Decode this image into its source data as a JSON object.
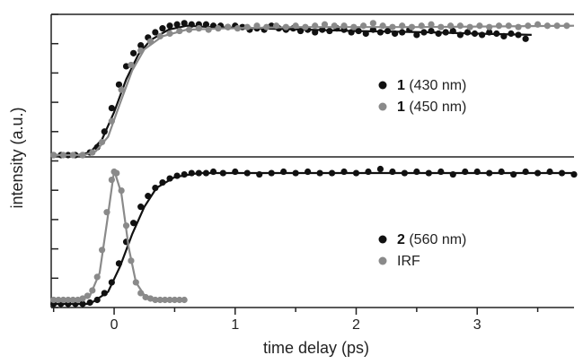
{
  "chart_data": {
    "type": "scatter",
    "xlabel": "time delay (ps)",
    "ylabel": "intensity (a.u.)",
    "xlim": [
      -0.52,
      3.8
    ],
    "x_ticks": [
      0,
      1,
      2,
      3
    ],
    "grid": false,
    "colors": {
      "black": "#111111",
      "gray": "#8a8a8a"
    },
    "panels": [
      {
        "id": "top",
        "ylim": [
          0,
          1.05
        ],
        "legend_position": "center-right",
        "series": [
          {
            "name_bold": "1",
            "name": "(430 nm)",
            "color": "#111111",
            "x": [
              -0.5,
              -0.44,
              -0.38,
              -0.32,
              -0.26,
              -0.2,
              -0.14,
              -0.08,
              -0.02,
              0.04,
              0.1,
              0.16,
              0.22,
              0.28,
              0.34,
              0.4,
              0.46,
              0.52,
              0.58,
              0.64,
              0.7,
              0.76,
              0.82,
              0.88,
              0.94,
              1.0,
              1.06,
              1.12,
              1.18,
              1.24,
              1.3,
              1.36,
              1.42,
              1.48,
              1.54,
              1.6,
              1.66,
              1.72,
              1.78,
              1.84,
              1.9,
              1.96,
              2.02,
              2.08,
              2.14,
              2.2,
              2.26,
              2.32,
              2.38,
              2.44,
              2.5,
              2.56,
              2.62,
              2.68,
              2.74,
              2.8,
              2.86,
              2.92,
              2.98,
              3.04,
              3.1,
              3.16,
              3.22,
              3.28,
              3.34,
              3.4
            ],
            "values": [
              0.0,
              0.0,
              0.0,
              0.0,
              0.0,
              0.02,
              0.06,
              0.18,
              0.36,
              0.54,
              0.68,
              0.78,
              0.84,
              0.9,
              0.94,
              0.97,
              0.99,
              1.0,
              1.01,
              1.0,
              1.0,
              1.0,
              0.99,
              0.99,
              0.98,
              0.99,
              0.98,
              0.96,
              0.97,
              0.96,
              0.99,
              0.97,
              0.96,
              0.97,
              0.95,
              0.96,
              0.94,
              0.96,
              0.95,
              0.97,
              0.96,
              0.94,
              0.95,
              0.93,
              0.96,
              0.94,
              0.95,
              0.93,
              0.94,
              0.96,
              0.92,
              0.94,
              0.95,
              0.93,
              0.94,
              0.95,
              0.92,
              0.94,
              0.93,
              0.92,
              0.94,
              0.93,
              0.91,
              0.93,
              0.92,
              0.89
            ],
            "fit": [
              [
                -0.52,
                0.0
              ],
              [
                -0.3,
                0.0
              ],
              [
                -0.2,
                0.02
              ],
              [
                -0.1,
                0.12
              ],
              [
                0.0,
                0.33
              ],
              [
                0.1,
                0.58
              ],
              [
                0.2,
                0.77
              ],
              [
                0.3,
                0.88
              ],
              [
                0.45,
                0.96
              ],
              [
                0.6,
                0.99
              ],
              [
                0.8,
                0.98
              ],
              [
                1.2,
                0.97
              ],
              [
                1.6,
                0.96
              ],
              [
                2.0,
                0.95
              ],
              [
                2.6,
                0.94
              ],
              [
                3.0,
                0.93
              ],
              [
                3.45,
                0.92
              ]
            ]
          },
          {
            "name_bold": "1",
            "name": "(450 nm)",
            "color": "#8a8a8a",
            "x": [
              -0.5,
              -0.42,
              -0.34,
              -0.26,
              -0.18,
              -0.1,
              -0.02,
              0.06,
              0.14,
              0.22,
              0.3,
              0.38,
              0.46,
              0.54,
              0.62,
              0.7,
              0.78,
              0.86,
              0.94,
              1.02,
              1.1,
              1.18,
              1.26,
              1.34,
              1.42,
              1.5,
              1.58,
              1.66,
              1.74,
              1.82,
              1.9,
              1.98,
              2.06,
              2.14,
              2.22,
              2.3,
              2.38,
              2.46,
              2.54,
              2.62,
              2.7,
              2.78,
              2.86,
              2.94,
              3.02,
              3.1,
              3.18,
              3.26,
              3.34,
              3.42,
              3.5,
              3.58,
              3.66,
              3.74
            ],
            "values": [
              0.0,
              0.0,
              0.0,
              0.0,
              0.02,
              0.1,
              0.26,
              0.5,
              0.69,
              0.8,
              0.87,
              0.91,
              0.93,
              0.95,
              0.96,
              0.97,
              0.96,
              0.97,
              0.98,
              0.97,
              0.98,
              0.99,
              0.98,
              0.99,
              0.98,
              0.99,
              0.98,
              0.99,
              1.0,
              0.99,
              0.99,
              0.98,
              0.99,
              1.01,
              0.99,
              0.98,
              0.99,
              0.98,
              0.99,
              1.0,
              0.98,
              0.99,
              0.99,
              0.98,
              0.99,
              0.98,
              0.99,
              0.99,
              0.98,
              0.99,
              1.0,
              0.99,
              0.99,
              0.99
            ],
            "fit": [
              [
                -0.52,
                0.0
              ],
              [
                -0.25,
                0.0
              ],
              [
                -0.15,
                0.03
              ],
              [
                -0.05,
                0.14
              ],
              [
                0.05,
                0.4
              ],
              [
                0.15,
                0.65
              ],
              [
                0.25,
                0.81
              ],
              [
                0.4,
                0.91
              ],
              [
                0.6,
                0.96
              ],
              [
                0.9,
                0.97
              ],
              [
                1.5,
                0.98
              ],
              [
                2.5,
                0.98
              ],
              [
                3.8,
                0.99
              ]
            ]
          }
        ]
      },
      {
        "id": "bottom",
        "ylim": [
          0,
          1.05
        ],
        "legend_position": "bottom-right",
        "series": [
          {
            "name_bold": "2",
            "name": "(560 nm)",
            "color": "#111111",
            "x": [
              -0.5,
              -0.44,
              -0.38,
              -0.32,
              -0.26,
              -0.2,
              -0.14,
              -0.08,
              -0.02,
              0.04,
              0.1,
              0.16,
              0.22,
              0.28,
              0.34,
              0.4,
              0.46,
              0.52,
              0.58,
              0.64,
              0.7,
              0.76,
              0.82,
              0.9,
              1.0,
              1.1,
              1.2,
              1.3,
              1.4,
              1.5,
              1.6,
              1.7,
              1.8,
              1.9,
              2.0,
              2.1,
              2.2,
              2.3,
              2.4,
              2.5,
              2.6,
              2.7,
              2.8,
              2.9,
              3.0,
              3.1,
              3.2,
              3.3,
              3.4,
              3.5,
              3.6,
              3.7,
              3.8
            ],
            "values": [
              0.0,
              0.0,
              0.0,
              0.0,
              0.0,
              0.01,
              0.03,
              0.08,
              0.16,
              0.3,
              0.46,
              0.6,
              0.72,
              0.8,
              0.86,
              0.9,
              0.93,
              0.95,
              0.96,
              0.97,
              0.97,
              0.97,
              0.98,
              0.97,
              0.98,
              0.97,
              0.96,
              0.97,
              0.98,
              0.97,
              0.98,
              0.97,
              0.97,
              0.98,
              0.97,
              0.98,
              1.0,
              0.98,
              0.97,
              0.98,
              0.97,
              0.98,
              0.96,
              0.98,
              0.98,
              0.97,
              0.98,
              0.96,
              0.98,
              0.97,
              0.98,
              0.97,
              0.96
            ],
            "fit": [
              [
                -0.52,
                0.0
              ],
              [
                -0.2,
                0.0
              ],
              [
                -0.05,
                0.09
              ],
              [
                0.05,
                0.28
              ],
              [
                0.15,
                0.52
              ],
              [
                0.25,
                0.72
              ],
              [
                0.35,
                0.86
              ],
              [
                0.5,
                0.94
              ],
              [
                0.7,
                0.97
              ],
              [
                1.0,
                0.97
              ],
              [
                2.0,
                0.97
              ],
              [
                3.0,
                0.97
              ],
              [
                3.8,
                0.97
              ]
            ]
          },
          {
            "name": "IRF",
            "color": "#8a8a8a",
            "x": [
              -0.5,
              -0.46,
              -0.42,
              -0.38,
              -0.34,
              -0.3,
              -0.26,
              -0.22,
              -0.18,
              -0.14,
              -0.1,
              -0.06,
              -0.02,
              0.0,
              0.02,
              0.06,
              0.1,
              0.14,
              0.18,
              0.22,
              0.26,
              0.3,
              0.34,
              0.38,
              0.42,
              0.46,
              0.5,
              0.54,
              0.58
            ],
            "values": [
              0.03,
              0.03,
              0.03,
              0.03,
              0.03,
              0.03,
              0.04,
              0.06,
              0.1,
              0.2,
              0.4,
              0.68,
              0.92,
              0.98,
              0.97,
              0.84,
              0.58,
              0.32,
              0.16,
              0.08,
              0.05,
              0.04,
              0.03,
              0.03,
              0.03,
              0.03,
              0.03,
              0.03,
              0.03
            ],
            "fit": [
              [
                -0.52,
                0.03
              ],
              [
                -0.3,
                0.03
              ],
              [
                -0.2,
                0.06
              ],
              [
                -0.12,
                0.23
              ],
              [
                -0.06,
                0.6
              ],
              [
                0.0,
                0.99
              ],
              [
                0.06,
                0.82
              ],
              [
                0.12,
                0.42
              ],
              [
                0.18,
                0.16
              ],
              [
                0.26,
                0.05
              ],
              [
                0.34,
                0.03
              ],
              [
                0.6,
                0.03
              ]
            ]
          }
        ]
      }
    ]
  }
}
